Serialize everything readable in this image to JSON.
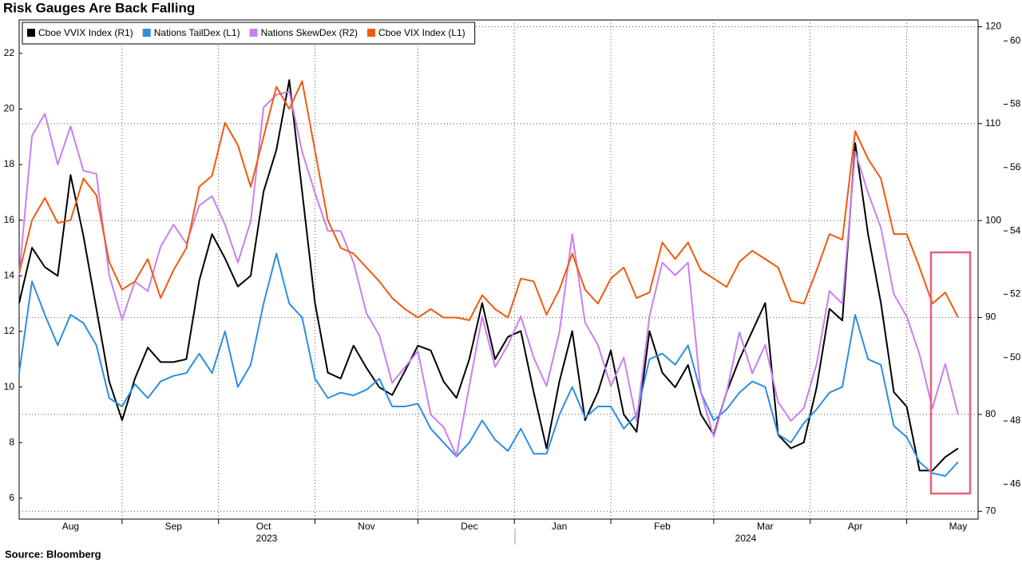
{
  "chart_data": {
    "type": "line",
    "title": "Risk Gauges Are Back Falling",
    "source": "Source: Bloomberg",
    "categories": [
      null,
      null,
      null,
      null,
      "Aug",
      null,
      null,
      null,
      null,
      null,
      null,
      null,
      "Sep",
      null,
      null,
      null,
      null,
      null,
      null,
      "Oct",
      null,
      null,
      null,
      null,
      null,
      null,
      null,
      "Nov",
      null,
      null,
      null,
      null,
      null,
      null,
      null,
      "Dec",
      null,
      null,
      null,
      null,
      null,
      null,
      "Jan",
      null,
      null,
      null,
      null,
      null,
      null,
      null,
      "Feb",
      null,
      null,
      null,
      null,
      null,
      null,
      null,
      "Mar",
      null,
      null,
      null,
      null,
      null,
      null,
      "Apr",
      null,
      null,
      null,
      null,
      null,
      null,
      null,
      "May"
    ],
    "years": [
      "2023",
      "2024"
    ],
    "series": [
      {
        "name": "Cboe VVIX Index (R1)",
        "color": "#000000",
        "axis": "y2",
        "values": [
          91.5,
          97.2,
          95.2,
          94.3,
          104.7,
          98.4,
          90.9,
          83.4,
          79.4,
          83.7,
          86.9,
          85.4,
          85.4,
          85.7,
          93.8,
          98.6,
          96.1,
          93.2,
          94.3,
          103.0,
          107.3,
          114.5,
          103.0,
          91.5,
          84.3,
          83.7,
          87.1,
          84.8,
          82.8,
          82.0,
          84.5,
          87.1,
          86.6,
          83.4,
          81.7,
          85.7,
          91.5,
          85.7,
          88.0,
          88.6,
          82.3,
          76.5,
          83.4,
          88.6,
          79.4,
          82.3,
          86.6,
          80.0,
          78.2,
          88.6,
          84.3,
          82.8,
          85.1,
          80.0,
          77.9,
          82.3,
          85.7,
          88.6,
          91.5,
          77.9,
          76.5,
          77.1,
          82.8,
          90.9,
          89.7,
          108.0,
          98.6,
          91.5,
          82.3,
          80.8,
          74.2,
          74.2,
          75.6,
          76.5
        ]
      },
      {
        "name": "Nations TailDex (L1)",
        "color": "#2e8ee0",
        "axis": "y",
        "values": [
          10.5,
          13.8,
          12.6,
          11.5,
          12.6,
          12.3,
          11.5,
          9.6,
          9.3,
          10.1,
          9.6,
          10.2,
          10.4,
          10.5,
          11.2,
          10.5,
          12.0,
          10.0,
          10.8,
          13.0,
          14.8,
          13.0,
          12.5,
          10.3,
          9.6,
          9.8,
          9.7,
          9.9,
          10.3,
          9.3,
          9.3,
          9.4,
          8.5,
          8.0,
          7.5,
          8.0,
          8.8,
          8.1,
          7.7,
          8.5,
          7.6,
          7.6,
          9.0,
          10.0,
          8.9,
          9.3,
          9.3,
          8.5,
          9.0,
          11.0,
          11.2,
          10.8,
          11.5,
          9.8,
          8.8,
          9.2,
          9.8,
          10.2,
          10.0,
          8.3,
          8.0,
          8.7,
          9.2,
          9.8,
          10.0,
          12.6,
          11.0,
          10.8,
          8.6,
          8.2,
          7.3,
          6.9,
          6.8,
          7.3
        ]
      },
      {
        "name": "Nations SkewDex (R2)",
        "color": "#c97ff0",
        "axis": "y3",
        "values": [
          52.6,
          57.0,
          57.7,
          56.1,
          57.3,
          55.9,
          55.8,
          52.6,
          51.2,
          52.4,
          52.1,
          53.5,
          54.2,
          53.6,
          54.8,
          55.1,
          54.2,
          53.0,
          54.3,
          57.9,
          58.3,
          58.4,
          56.5,
          55.2,
          54.0,
          54.0,
          53.0,
          51.4,
          50.7,
          49.2,
          49.7,
          50.2,
          48.2,
          47.8,
          46.9,
          49.1,
          51.3,
          49.7,
          50.4,
          51.3,
          50.0,
          49.1,
          50.8,
          53.9,
          51.1,
          50.4,
          49.1,
          50.0,
          48.0,
          51.3,
          53.0,
          52.6,
          53.0,
          48.9,
          47.5,
          48.9,
          50.8,
          49.5,
          50.4,
          48.6,
          48.0,
          48.4,
          49.8,
          52.1,
          51.7,
          56.5,
          55.2,
          54.1,
          52.0,
          51.3,
          50.1,
          48.4,
          49.8,
          48.2
        ]
      },
      {
        "name": "Cboe VIX Index (L1)",
        "color": "#f05a0c",
        "axis": "y",
        "values": [
          14.1,
          16.0,
          16.8,
          15.9,
          16.0,
          17.5,
          16.9,
          14.5,
          13.5,
          13.8,
          14.6,
          13.2,
          14.2,
          15.0,
          17.2,
          17.6,
          19.5,
          18.7,
          17.2,
          19.0,
          20.8,
          20.0,
          21.0,
          18.5,
          16.0,
          15.0,
          14.8,
          14.3,
          13.8,
          13.2,
          12.8,
          12.5,
          12.8,
          12.5,
          12.5,
          12.4,
          13.3,
          12.8,
          12.5,
          13.9,
          13.8,
          12.6,
          13.5,
          14.8,
          13.5,
          13.0,
          13.9,
          14.3,
          13.2,
          13.4,
          15.2,
          14.6,
          15.2,
          14.2,
          13.9,
          13.6,
          14.5,
          14.9,
          14.6,
          14.3,
          13.1,
          13.0,
          14.2,
          15.5,
          15.3,
          19.2,
          18.2,
          17.5,
          15.5,
          15.5,
          14.3,
          13.0,
          13.4,
          12.5
        ]
      }
    ],
    "ylim": [
      5.25,
      23.2
    ],
    "yticks": [
      6,
      8,
      10,
      12,
      14,
      16,
      18,
      20,
      22
    ],
    "y2lim": [
      69.2,
      120.7
    ],
    "y2ticks": [
      70,
      80,
      90,
      100,
      110,
      120
    ],
    "y3lim": [
      44.9,
      60.66
    ],
    "y3ticks": [
      46,
      48,
      50,
      52,
      54,
      56,
      58,
      60
    ],
    "grid": "y2",
    "xgrid": true,
    "legend": "top-left"
  }
}
